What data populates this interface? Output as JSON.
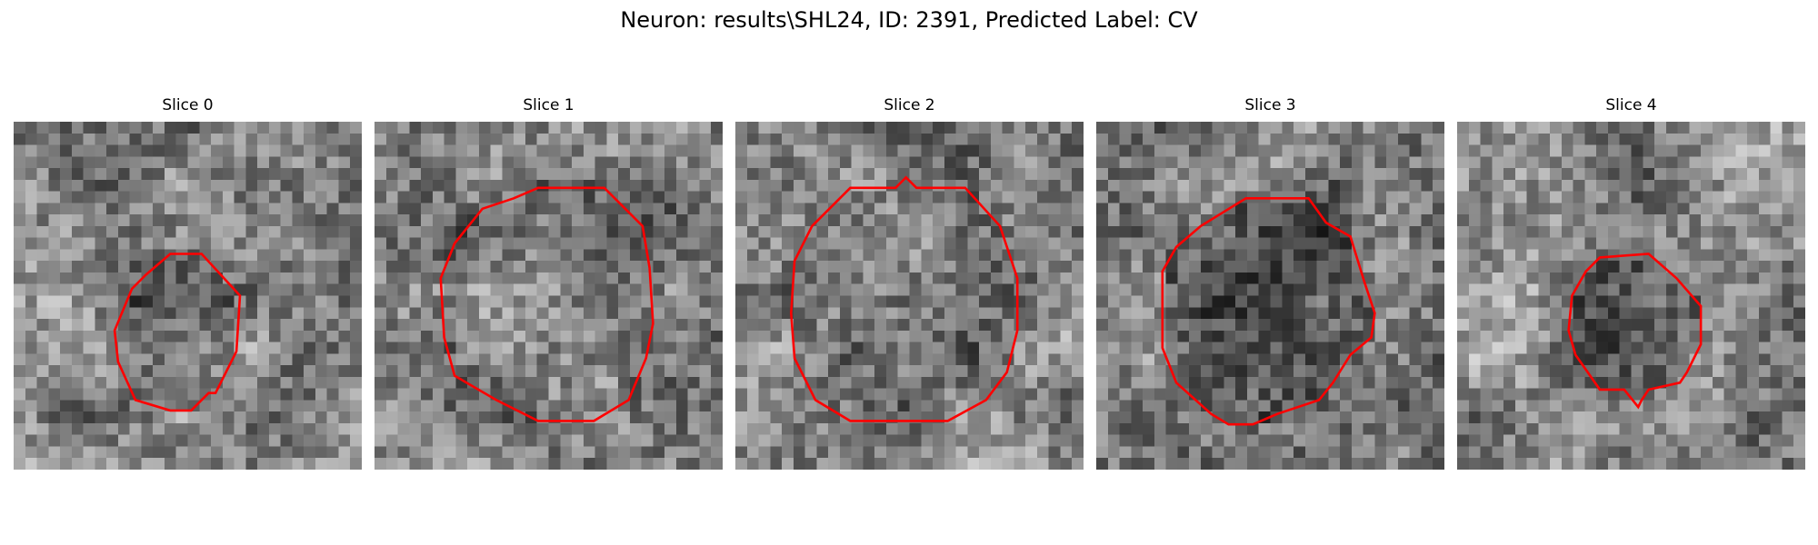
{
  "figure": {
    "title": "Neuron: results\\SHL24, ID: 2391, Predicted Label: CV"
  },
  "panels": [
    {
      "title": "Slice 0",
      "seed": 11,
      "contour": [
        [
          0.45,
          0.38
        ],
        [
          0.54,
          0.38
        ],
        [
          0.65,
          0.5
        ],
        [
          0.64,
          0.66
        ],
        [
          0.58,
          0.78
        ],
        [
          0.56,
          0.78
        ],
        [
          0.51,
          0.83
        ],
        [
          0.45,
          0.83
        ],
        [
          0.35,
          0.8
        ],
        [
          0.3,
          0.69
        ],
        [
          0.29,
          0.6
        ],
        [
          0.34,
          0.48
        ],
        [
          0.38,
          0.44
        ]
      ],
      "dark_center": 0.35,
      "rim": 0.0
    },
    {
      "title": "Slice 1",
      "seed": 23,
      "contour": [
        [
          0.47,
          0.19
        ],
        [
          0.66,
          0.19
        ],
        [
          0.77,
          0.3
        ],
        [
          0.79,
          0.42
        ],
        [
          0.8,
          0.58
        ],
        [
          0.78,
          0.68
        ],
        [
          0.73,
          0.8
        ],
        [
          0.63,
          0.86
        ],
        [
          0.47,
          0.86
        ],
        [
          0.35,
          0.8
        ],
        [
          0.23,
          0.73
        ],
        [
          0.2,
          0.62
        ],
        [
          0.19,
          0.45
        ],
        [
          0.23,
          0.35
        ],
        [
          0.31,
          0.25
        ],
        [
          0.4,
          0.22
        ]
      ],
      "dark_center": 0.1,
      "rim": 0.25
    },
    {
      "title": "Slice 2",
      "seed": 37,
      "contour": [
        [
          0.33,
          0.19
        ],
        [
          0.46,
          0.19
        ],
        [
          0.49,
          0.16
        ],
        [
          0.52,
          0.19
        ],
        [
          0.66,
          0.19
        ],
        [
          0.76,
          0.3
        ],
        [
          0.81,
          0.45
        ],
        [
          0.81,
          0.6
        ],
        [
          0.78,
          0.72
        ],
        [
          0.72,
          0.8
        ],
        [
          0.61,
          0.86
        ],
        [
          0.33,
          0.86
        ],
        [
          0.23,
          0.8
        ],
        [
          0.17,
          0.68
        ],
        [
          0.16,
          0.55
        ],
        [
          0.17,
          0.4
        ],
        [
          0.22,
          0.3
        ]
      ],
      "dark_center": 0.15,
      "rim": 0.1
    },
    {
      "title": "Slice 3",
      "seed": 53,
      "contour": [
        [
          0.43,
          0.22
        ],
        [
          0.61,
          0.22
        ],
        [
          0.66,
          0.29
        ],
        [
          0.73,
          0.33
        ],
        [
          0.77,
          0.46
        ],
        [
          0.8,
          0.55
        ],
        [
          0.79,
          0.62
        ],
        [
          0.73,
          0.67
        ],
        [
          0.68,
          0.75
        ],
        [
          0.64,
          0.8
        ],
        [
          0.52,
          0.84
        ],
        [
          0.45,
          0.87
        ],
        [
          0.38,
          0.87
        ],
        [
          0.33,
          0.84
        ],
        [
          0.23,
          0.75
        ],
        [
          0.19,
          0.65
        ],
        [
          0.19,
          0.43
        ],
        [
          0.23,
          0.36
        ],
        [
          0.3,
          0.3
        ]
      ],
      "dark_center": 0.45,
      "rim": 0.2
    },
    {
      "title": "Slice 4",
      "seed": 71,
      "contour": [
        [
          0.41,
          0.39
        ],
        [
          0.55,
          0.38
        ],
        [
          0.63,
          0.45
        ],
        [
          0.7,
          0.53
        ],
        [
          0.7,
          0.64
        ],
        [
          0.66,
          0.72
        ],
        [
          0.64,
          0.75
        ],
        [
          0.55,
          0.77
        ],
        [
          0.53,
          0.8
        ],
        [
          0.52,
          0.82
        ],
        [
          0.48,
          0.77
        ],
        [
          0.41,
          0.77
        ],
        [
          0.34,
          0.67
        ],
        [
          0.32,
          0.6
        ],
        [
          0.33,
          0.5
        ],
        [
          0.37,
          0.43
        ]
      ],
      "dark_center": 0.35,
      "rim": 0.15
    }
  ]
}
